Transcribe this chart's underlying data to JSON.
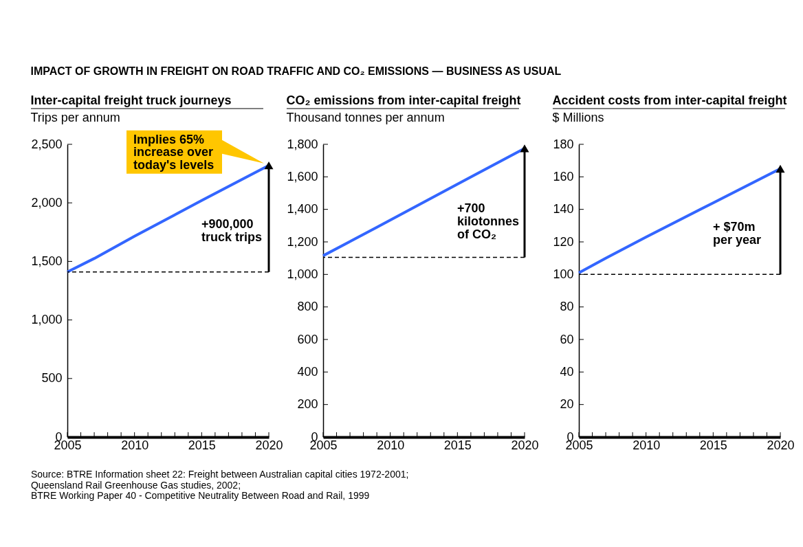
{
  "chart_data": [
    {
      "type": "line",
      "title": "IMPACT OF GROWTH IN FREIGHT ON ROAD TRAFFIC AND CO₂ EMISSIONS — BUSINESS AS USUAL",
      "subtitle": "Inter-capital freight truck journeys",
      "ylabel": "Trips per annum",
      "x": [
        2005,
        2007,
        2010,
        2015,
        2020
      ],
      "series": [
        {
          "color": "#3366ff",
          "values": [
            1410,
            1525,
            1715,
            2020,
            2320
          ]
        }
      ],
      "xlim": [
        2005,
        2020
      ],
      "ylim": [
        0,
        2500
      ],
      "xticks": [
        2005,
        {
          "value": 2006,
          "label": null
        },
        {
          "value": 2007,
          "label": null
        },
        {
          "value": 2008,
          "label": null
        },
        {
          "value": 2009,
          "label": null
        },
        2010,
        {
          "value": 2011,
          "label": null
        },
        {
          "value": 2012,
          "label": null
        },
        {
          "value": 2013,
          "label": null
        },
        {
          "value": 2014,
          "label": null
        },
        2015,
        {
          "value": 2016,
          "label": null
        },
        {
          "value": 2017,
          "label": null
        },
        {
          "value": 2018,
          "label": null
        },
        {
          "value": 2019,
          "label": null
        },
        2020
      ],
      "yticks": [
        0,
        500,
        {
          "value": 1000,
          "label": "1,000"
        },
        {
          "value": 1500,
          "label": "1,500"
        },
        {
          "value": 2000,
          "label": "2,000"
        },
        {
          "value": 2500,
          "label": "2,500"
        }
      ],
      "ref_lines": [
        {
          "axis": "y",
          "value": 1410,
          "color": "#000000",
          "line_style": "dashed"
        }
      ],
      "annotations": [
        "+900,000\ntruck trips",
        "Implies 65%\nincrease over\ntoday's levels",
        "Source:  BTRE Information sheet 22: Freight between Australian capital cities 1972-2001;\nQueensland Rail Greenhouse Gas studies, 2002;\nBTRE Working Paper 40 - Competitive Neutrality Between Road and Rail, 1999"
      ]
    },
    {
      "type": "line",
      "subtitle": "CO₂ emissions from inter-capital freight",
      "ylabel": "Thousand tonnes per annum",
      "x": [
        2005,
        2009,
        2015,
        2020
      ],
      "series": [
        {
          "color": "#3366ff",
          "values": [
            1115,
            1290,
            1555,
            1775
          ]
        }
      ],
      "xlim": [
        2005,
        2020
      ],
      "ylim": [
        0,
        1800
      ],
      "xticks": [
        2005,
        {
          "value": 2006,
          "label": null
        },
        {
          "value": 2007,
          "label": null
        },
        {
          "value": 2008,
          "label": null
        },
        {
          "value": 2009,
          "label": null
        },
        2010,
        {
          "value": 2011,
          "label": null
        },
        {
          "value": 2012,
          "label": null
        },
        {
          "value": 2013,
          "label": null
        },
        {
          "value": 2014,
          "label": null
        },
        2015,
        {
          "value": 2016,
          "label": null
        },
        {
          "value": 2017,
          "label": null
        },
        {
          "value": 2018,
          "label": null
        },
        {
          "value": 2019,
          "label": null
        },
        2020
      ],
      "yticks": [
        0,
        200,
        400,
        600,
        800,
        {
          "value": 1000,
          "label": "1,000"
        },
        {
          "value": 1200,
          "label": "1,200"
        },
        {
          "value": 1400,
          "label": "1,400"
        },
        {
          "value": 1600,
          "label": "1,600"
        },
        {
          "value": 1800,
          "label": "1,800"
        }
      ],
      "ref_lines": [
        {
          "axis": "y",
          "value": 1105,
          "color": "#000000",
          "line_style": "dashed"
        }
      ],
      "annotations": [
        "+700\nkilotonnes\nof CO₂"
      ]
    },
    {
      "type": "line",
      "subtitle": "Accident costs from inter-capital freight",
      "ylabel": "$ Millions",
      "x": [
        2005,
        2007,
        2010,
        2015,
        2020
      ],
      "series": [
        {
          "color": "#3366ff",
          "values": [
            101,
            110,
            123,
            144,
            165
          ]
        }
      ],
      "xlim": [
        2005,
        2020
      ],
      "ylim": [
        0,
        180
      ],
      "xticks": [
        2005,
        {
          "value": 2006,
          "label": null
        },
        {
          "value": 2007,
          "label": null
        },
        {
          "value": 2008,
          "label": null
        },
        {
          "value": 2009,
          "label": null
        },
        2010,
        {
          "value": 2011,
          "label": null
        },
        {
          "value": 2012,
          "label": null
        },
        {
          "value": 2013,
          "label": null
        },
        {
          "value": 2014,
          "label": null
        },
        2015,
        {
          "value": 2016,
          "label": null
        },
        {
          "value": 2017,
          "label": null
        },
        {
          "value": 2018,
          "label": null
        },
        {
          "value": 2019,
          "label": null
        },
        2020
      ],
      "yticks": [
        0,
        20,
        40,
        60,
        80,
        100,
        120,
        140,
        160,
        180
      ],
      "ref_lines": [
        {
          "axis": "y",
          "value": 100,
          "color": "#000000",
          "line_style": "dashed"
        }
      ],
      "annotations": [
        "+ $70m\nper year"
      ]
    }
  ]
}
